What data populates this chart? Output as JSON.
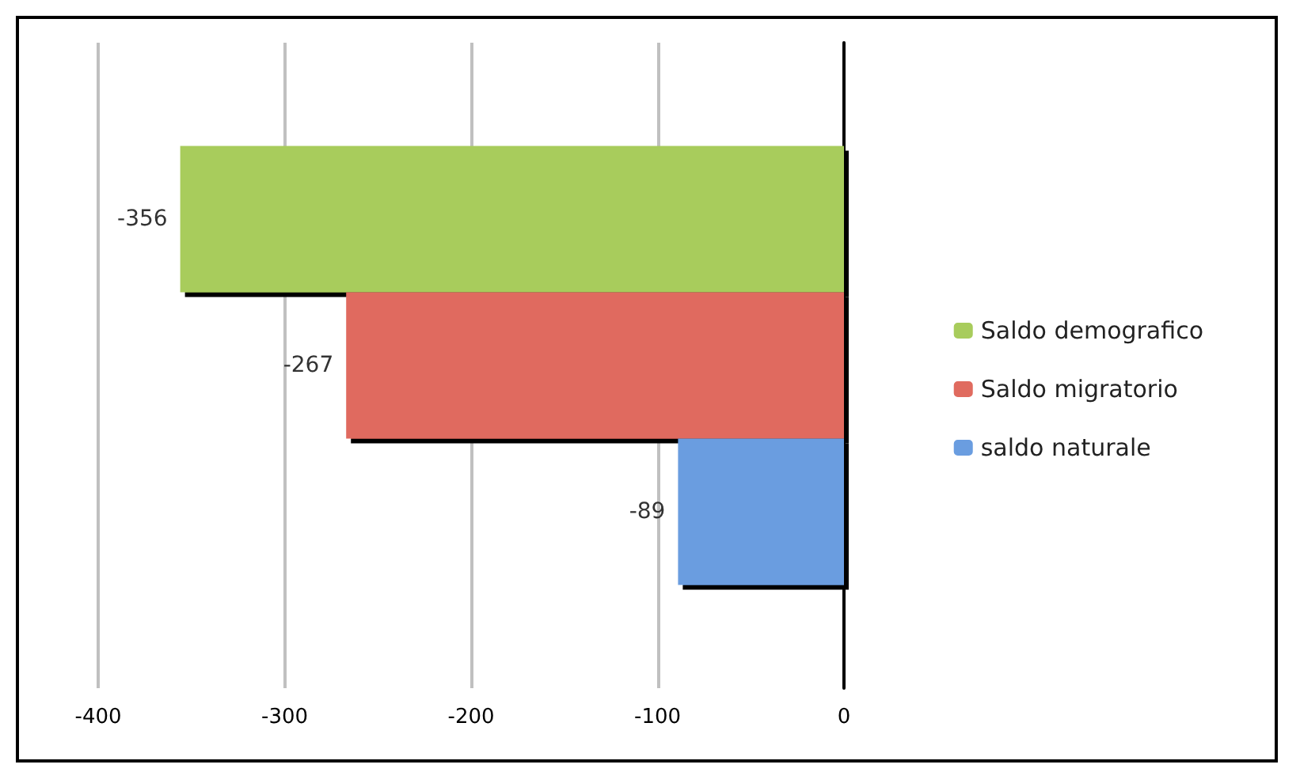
{
  "chart_data": {
    "type": "bar",
    "orientation": "horizontal",
    "categories": [
      null
    ],
    "series": [
      {
        "name": "Saldo demografico",
        "color": "#a8cc5c",
        "values": [
          -356
        ]
      },
      {
        "name": "Saldo migratorio",
        "color": "#e06b5f",
        "values": [
          -267
        ]
      },
      {
        "name": "saldo naturale",
        "color": "#6a9de0",
        "values": [
          -89
        ]
      }
    ],
    "xlim": [
      -400,
      0
    ],
    "xticks": [
      -400,
      -300,
      -200,
      -100,
      0
    ],
    "grid": "x",
    "legend": "right",
    "data_labels": true
  }
}
